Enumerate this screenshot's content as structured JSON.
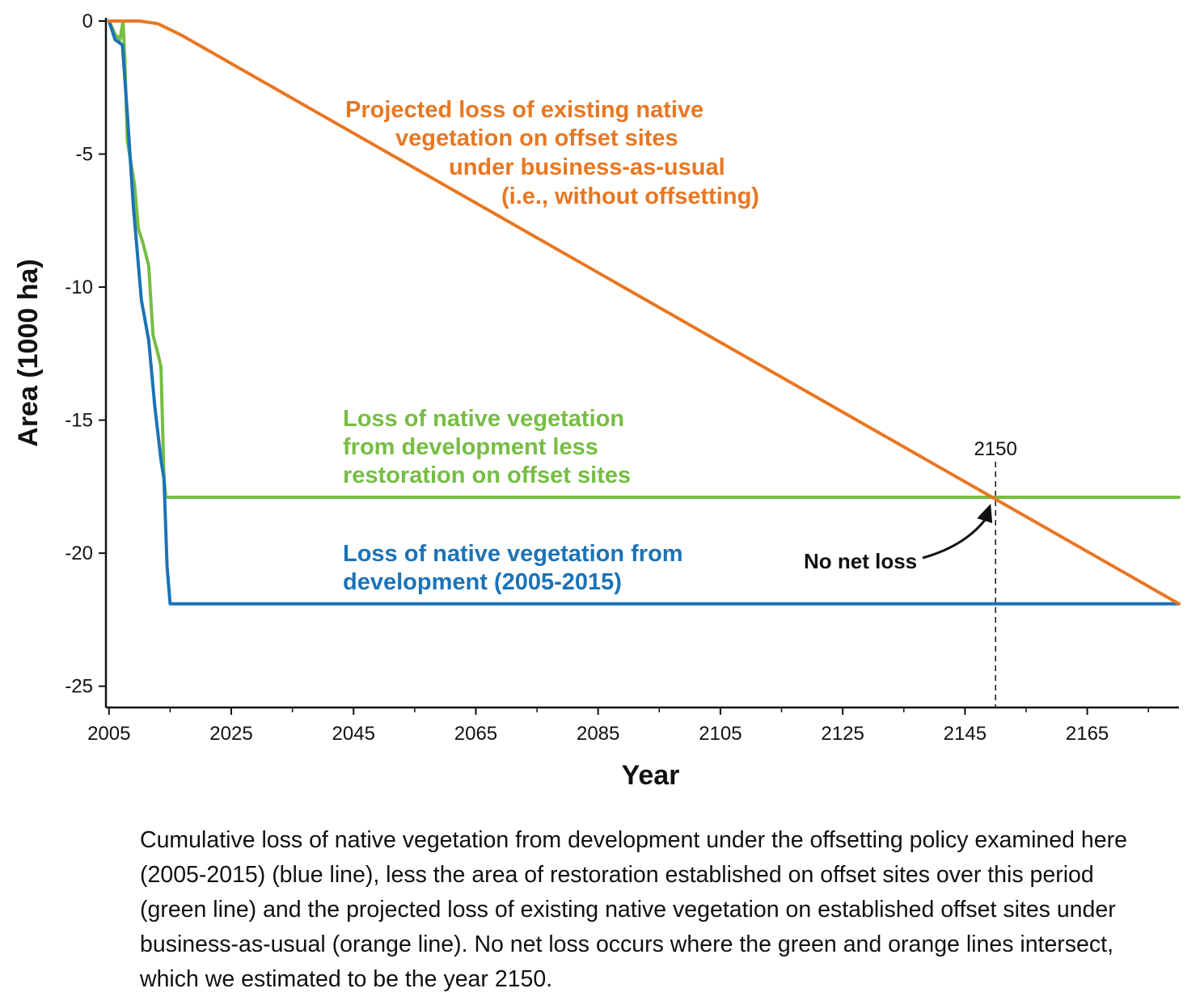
{
  "chart_data": {
    "type": "line",
    "xlabel": "Year",
    "ylabel": "Area (1000 ha)",
    "xlim": [
      2004.5,
      2180
    ],
    "ylim": [
      -25.8,
      0
    ],
    "x_ticks": [
      2005,
      2025,
      2045,
      2065,
      2085,
      2105,
      2125,
      2145,
      2165
    ],
    "y_ticks": [
      0,
      -5,
      -10,
      -15,
      -20,
      -25
    ],
    "grid": false,
    "series": [
      {
        "key": "orange",
        "color": "#e87722",
        "label_lines": [
          "Projected loss of existing native",
          "vegetation on offset sites",
          "under business-as-usual",
          "(i.e., without offsetting)"
        ],
        "points": [
          [
            2005,
            0
          ],
          [
            2010,
            0
          ],
          [
            2013,
            -0.1
          ],
          [
            2017,
            -0.55
          ],
          [
            2180,
            -21.9
          ]
        ]
      },
      {
        "key": "green",
        "color": "#76bd43",
        "label_lines": [
          "Loss of native vegetation",
          "from development less",
          "restoration on offset sites"
        ],
        "points": [
          [
            2005,
            0
          ],
          [
            2006,
            -0.5
          ],
          [
            2006.8,
            -0.7
          ],
          [
            2007.3,
            0
          ],
          [
            2007.6,
            -1.5
          ],
          [
            2008,
            -4.5
          ],
          [
            2009.2,
            -6.2
          ],
          [
            2009.8,
            -7.8
          ],
          [
            2010.5,
            -8.3
          ],
          [
            2011.5,
            -9.2
          ],
          [
            2012.2,
            -11.8
          ],
          [
            2013,
            -12.5
          ],
          [
            2013.5,
            -13
          ],
          [
            2014,
            -17.2
          ],
          [
            2014.3,
            -17.9
          ],
          [
            2180,
            -17.9
          ]
        ]
      },
      {
        "key": "blue",
        "color": "#1a73b8",
        "label_lines": [
          "Loss of native vegetation from",
          "development (2005-2015)"
        ],
        "points": [
          [
            2005,
            0
          ],
          [
            2006,
            -0.7
          ],
          [
            2007.2,
            -0.9
          ],
          [
            2008,
            -3.5
          ],
          [
            2009,
            -7
          ],
          [
            2010.3,
            -10.5
          ],
          [
            2011.5,
            -12
          ],
          [
            2012.5,
            -14.5
          ],
          [
            2013.5,
            -16.5
          ],
          [
            2014,
            -17.2
          ],
          [
            2014.5,
            -20.5
          ],
          [
            2015,
            -21.9
          ],
          [
            2180,
            -21.9
          ]
        ]
      }
    ],
    "marker": {
      "x": 2150,
      "label": "2150"
    },
    "annotation": {
      "text": "No net loss",
      "x": 2150,
      "y": -17.9
    }
  },
  "caption": "Cumulative loss of native vegetation from development under the offsetting policy examined here (2005-2015) (blue line), less the area of restoration established on offset sites over this period (green line) and the projected loss of existing native vegetation on established offset sites under business-as-usual (orange line). No net loss occurs where the green and orange lines intersect, which we estimated to be the year 2150."
}
